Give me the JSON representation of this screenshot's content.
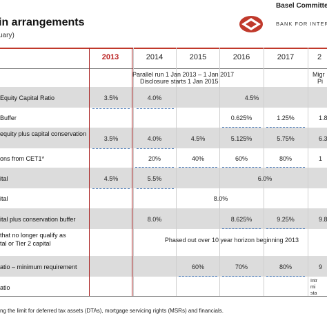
{
  "header": {
    "title": "in arrangements",
    "subtitle": "uary)",
    "brand_line1": "Basel Committee",
    "brand_line2": "BANK FOR INTERN"
  },
  "years": [
    "2013",
    "2014",
    "2015",
    "2016",
    "2017",
    "2"
  ],
  "rows": {
    "r0": {
      "note_a": "Parallel run 1 Jan 2013 – 1 Jan 2017",
      "note_b": "Disclosure starts 1 Jan 2015",
      "note_c": "Migr",
      "note_d": "Pi"
    },
    "r1": {
      "label": "Equity Capital Ratio",
      "v2013": "3.5%",
      "v2014": "4.0%",
      "v_span": "4.5%"
    },
    "r2": {
      "label": "Buffer",
      "v2016": "0.625%",
      "v2017": "1.25%",
      "v2018": "1.8"
    },
    "r3": {
      "label": "equity plus capital conservation",
      "v2013": "3.5%",
      "v2014": "4.0%",
      "v2015": "4.5%",
      "v2016": "5.125%",
      "v2017": "5.75%",
      "v2018": "6.3"
    },
    "r4": {
      "label": "ons from CET1*",
      "v2014": "20%",
      "v2015": "40%",
      "v2016": "60%",
      "v2017": "80%",
      "v2018": "1"
    },
    "r5": {
      "label": "ital",
      "v2013": "4.5%",
      "v2014": "5.5%",
      "v_span": "6.0%"
    },
    "r6": {
      "label": "ital",
      "v_span": "8.0%"
    },
    "r7": {
      "label": "ital plus conservation buffer",
      "v2014": "8.0%",
      "v2016": "8.625%",
      "v2017": "9.25%",
      "v2018": "9.8"
    },
    "r8": {
      "label_a": "that no longer qualify as",
      "label_b": "tal or Tier 2 capital",
      "v_span": "Phased out over 10 year horizon beginning 2013"
    },
    "r9": {
      "label": "atio – minimum requirement",
      "v2015": "60%",
      "v2016": "70%",
      "v2017": "80%",
      "v2018": "9"
    },
    "r10": {
      "label": "atio",
      "v_a": "Intr",
      "v_b": "mi",
      "v_c": "sta"
    }
  },
  "footnote": "ng the limit for deferred tax assets (DTAs), mortgage servicing rights (MSRs) and financials.",
  "colors": {
    "accent_red": "#c0392b",
    "shade": "#dcdcdc",
    "dash_blue": "#4a7ab8"
  }
}
